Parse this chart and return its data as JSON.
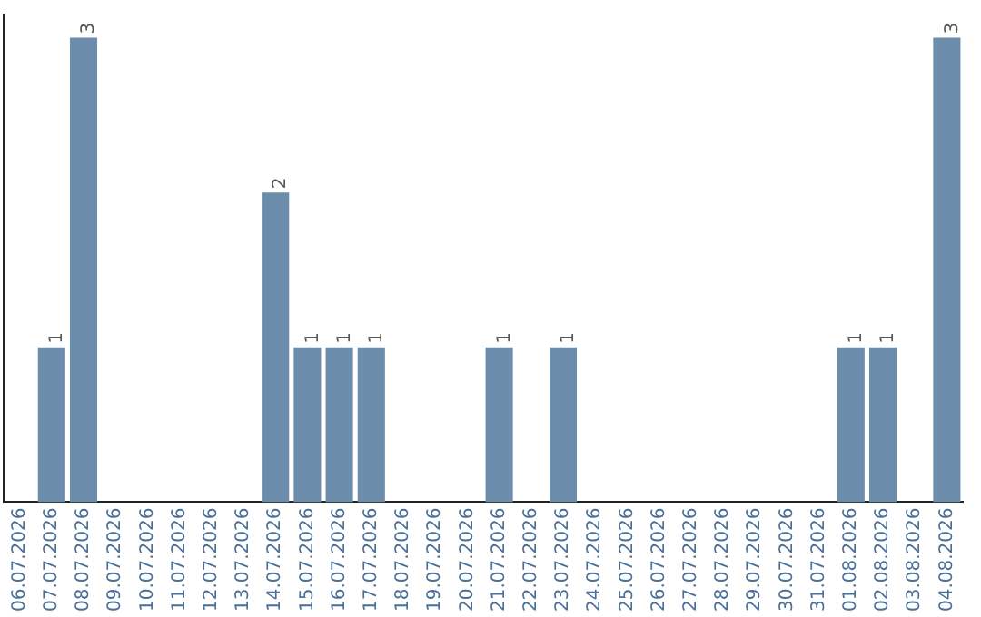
{
  "chart_data": {
    "type": "bar",
    "categories": [
      "06.07.2026",
      "07.07.2026",
      "08.07.2026",
      "09.07.2026",
      "10.07.2026",
      "11.07.2026",
      "12.07.2026",
      "13.07.2026",
      "14.07.2026",
      "15.07.2026",
      "16.07.2026",
      "17.07.2026",
      "18.07.2026",
      "19.07.2026",
      "20.07.2026",
      "21.07.2026",
      "22.07.2026",
      "23.07.2026",
      "24.07.2026",
      "25.07.2026",
      "26.07.2026",
      "27.07.2026",
      "28.07.2026",
      "29.07.2026",
      "30.07.2026",
      "31.07.2026",
      "01.08.2026",
      "02.08.2026",
      "03.08.2026",
      "04.08.2026"
    ],
    "values": [
      0,
      1,
      3,
      0,
      0,
      0,
      0,
      0,
      2,
      1,
      1,
      1,
      0,
      0,
      0,
      1,
      0,
      1,
      0,
      0,
      0,
      0,
      0,
      0,
      0,
      0,
      1,
      1,
      0,
      3
    ],
    "value_labels": [
      null,
      "1",
      "3",
      null,
      null,
      null,
      null,
      null,
      "2",
      "1",
      "1",
      "1",
      null,
      null,
      null,
      "1",
      null,
      "1",
      null,
      null,
      null,
      null,
      null,
      null,
      null,
      null,
      "1",
      "1",
      null,
      "3"
    ],
    "color": "#6b8caa",
    "ylim": [
      0,
      3.15
    ],
    "tick_labels": "x",
    "grid": false,
    "legend": false
  }
}
